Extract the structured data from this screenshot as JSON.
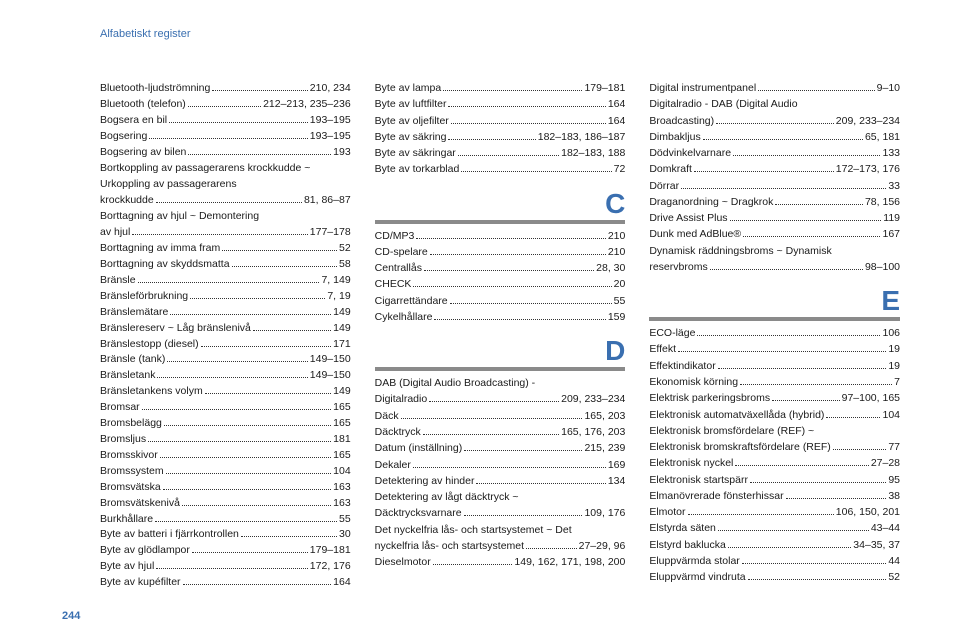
{
  "page_header": "Alfabetiskt register",
  "page_number": "244",
  "header_color": "#3a6fb0",
  "text_color": "#1a1a1a",
  "letter_color": "#3a6fb0",
  "divider_color": "#8a8a8a",
  "background": "#ffffff",
  "col1": [
    {
      "label": "Bluetooth-ljudströmning",
      "pages": "210, 234"
    },
    {
      "label": "Bluetooth (telefon)",
      "pages": "212–213, 235–236"
    },
    {
      "label": "Bogsera en bil",
      "pages": "193–195"
    },
    {
      "label": "Bogsering",
      "pages": "193–195"
    },
    {
      "label": "Bogsering av bilen",
      "pages": "193"
    },
    {
      "cont": "Bortkoppling av passagerarens krockkudde ~"
    },
    {
      "cont": "Urkoppling av passagerarens"
    },
    {
      "label": "krockkudde",
      "pages": "81, 86–87"
    },
    {
      "cont": "Borttagning av hjul ~ Demontering"
    },
    {
      "label": "av hjul",
      "pages": "177–178"
    },
    {
      "label": "Borttagning av imma fram",
      "pages": "52"
    },
    {
      "label": "Borttagning av skyddsmatta",
      "pages": "58"
    },
    {
      "label": "Bränsle",
      "pages": "7, 149"
    },
    {
      "label": "Bränsleförbrukning",
      "pages": "7, 19"
    },
    {
      "label": "Bränslemätare",
      "pages": "149"
    },
    {
      "label": "Bränslereserv ~ Låg bränslenivå",
      "pages": "149"
    },
    {
      "label": "Bränslestopp (diesel)",
      "pages": "171"
    },
    {
      "label": "Bränsle (tank)",
      "pages": "149–150"
    },
    {
      "label": "Bränsletank",
      "pages": "149–150"
    },
    {
      "label": "Bränsletankens volym",
      "pages": "149"
    },
    {
      "label": "Bromsar",
      "pages": "165"
    },
    {
      "label": "Bromsbelägg",
      "pages": "165"
    },
    {
      "label": "Bromsljus",
      "pages": "181"
    },
    {
      "label": "Bromsskivor",
      "pages": "165"
    },
    {
      "label": "Bromssystem",
      "pages": "104"
    },
    {
      "label": "Bromsvätska",
      "pages": "163"
    },
    {
      "label": "Bromsvätskenivå",
      "pages": "163"
    },
    {
      "label": "Burkhållare",
      "pages": "55"
    },
    {
      "label": "Byte av batteri i fjärrkontrollen",
      "pages": "30"
    },
    {
      "label": "Byte av glödlampor",
      "pages": "179–181"
    },
    {
      "label": "Byte av hjul",
      "pages": "172, 176"
    },
    {
      "label": "Byte av kupéfilter",
      "pages": "164"
    }
  ],
  "col2top": [
    {
      "label": "Byte av lampa",
      "pages": "179–181"
    },
    {
      "label": "Byte av luftfilter",
      "pages": "164"
    },
    {
      "label": "Byte av oljefilter",
      "pages": "164"
    },
    {
      "label": "Byte av säkring",
      "pages": "182–183, 186–187"
    },
    {
      "label": "Byte av säkringar",
      "pages": "182–183, 188"
    },
    {
      "label": "Byte av torkarblad",
      "pages": "72"
    }
  ],
  "section_c": "C",
  "col2c": [
    {
      "label": "CD/MP3",
      "pages": "210"
    },
    {
      "label": "CD-spelare",
      "pages": "210"
    },
    {
      "label": "Centrallås",
      "pages": "28, 30"
    },
    {
      "label": "CHECK",
      "pages": "20"
    },
    {
      "label": "Cigarrettändare",
      "pages": "55"
    },
    {
      "label": "Cykelhållare",
      "pages": "159"
    }
  ],
  "section_d": "D",
  "col2d": [
    {
      "cont": "DAB (Digital Audio Broadcasting) -"
    },
    {
      "label": "Digitalradio",
      "pages": "209, 233–234"
    },
    {
      "label": "Däck",
      "pages": "165, 203"
    },
    {
      "label": "Däcktryck",
      "pages": "165, 176, 203"
    },
    {
      "label": "Datum (inställning)",
      "pages": "215, 239"
    },
    {
      "label": "Dekaler",
      "pages": "169"
    },
    {
      "label": "Detektering av hinder",
      "pages": "134"
    },
    {
      "cont": "Detektering av lågt däcktryck ~"
    },
    {
      "label": "Däcktrycksvarnare",
      "pages": "109, 176"
    },
    {
      "cont": "Det nyckelfria lås- och startsystemet ~ Det"
    },
    {
      "label": "nyckelfria lås- och startsystemet",
      "pages": "27–29, 96"
    },
    {
      "label": "Dieselmotor",
      "pages": "149, 162, 171, 198, 200"
    }
  ],
  "col3top": [
    {
      "label": "Digital instrumentpanel",
      "pages": "9–10"
    },
    {
      "cont": "Digitalradio - DAB (Digital Audio"
    },
    {
      "label": "Broadcasting)",
      "pages": "209, 233–234"
    },
    {
      "label": "Dimbakljus",
      "pages": "65, 181"
    },
    {
      "label": "Dödvinkelvarnare",
      "pages": "133"
    },
    {
      "label": "Domkraft",
      "pages": "172–173, 176"
    },
    {
      "label": "Dörrar",
      "pages": "33"
    },
    {
      "label": "Draganordning ~ Dragkrok",
      "pages": "78, 156"
    },
    {
      "label": "Drive Assist Plus",
      "pages": "119"
    },
    {
      "label": "Dunk med AdBlue®",
      "pages": "167"
    },
    {
      "cont": "Dynamisk räddningsbroms ~ Dynamisk"
    },
    {
      "label": "reservbroms",
      "pages": "98–100"
    }
  ],
  "section_e": "E",
  "col3e": [
    {
      "label": "ECO-läge",
      "pages": "106"
    },
    {
      "label": "Effekt",
      "pages": "19"
    },
    {
      "label": "Effektindikator",
      "pages": "19"
    },
    {
      "label": "Ekonomisk körning",
      "pages": "7"
    },
    {
      "label": "Elektrisk parkeringsbroms",
      "pages": "97–100, 165"
    },
    {
      "label": "Elektronisk automatväxellåda (hybrid)",
      "pages": "104"
    },
    {
      "cont": "Elektronisk bromsfördelare (REF) ~"
    },
    {
      "label": "Elektronisk bromskraftsfördelare (REF)",
      "pages": "77"
    },
    {
      "label": "Elektronisk nyckel",
      "pages": "27–28"
    },
    {
      "label": "Elektronisk startspärr",
      "pages": "95"
    },
    {
      "label": "Elmanövrerade fönsterhissar",
      "pages": "38"
    },
    {
      "label": "Elmotor",
      "pages": "106, 150, 201"
    },
    {
      "label": "Elstyrda säten",
      "pages": "43–44"
    },
    {
      "label": "Elstyrd baklucka",
      "pages": "34–35, 37"
    },
    {
      "label": "Eluppvärmda stolar",
      "pages": "44"
    },
    {
      "label": "Eluppvärmd vindruta",
      "pages": "52"
    }
  ]
}
